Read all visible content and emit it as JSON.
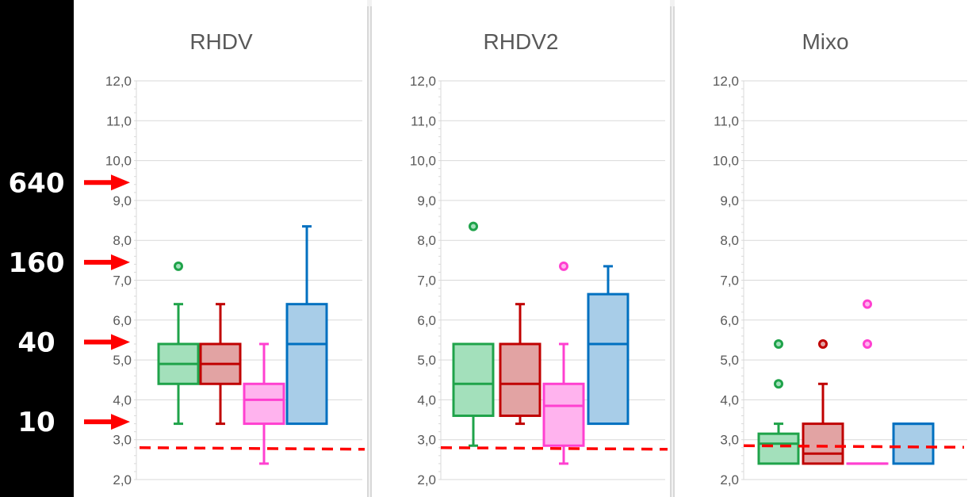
{
  "chart_data": [
    {
      "type": "box",
      "title": "RHDV",
      "ylim": [
        2,
        12
      ],
      "ytick_labels": [
        "2,0",
        "3,0",
        "4,0",
        "5,0",
        "6,0",
        "7,0",
        "8,0",
        "9,0",
        "10,0",
        "11,0",
        "12,0"
      ],
      "threshold_line": 2.8,
      "series": [
        {
          "color": "#1fa34a",
          "fill": "#a3e0bb",
          "q1": 4.4,
          "median": 4.9,
          "q3": 5.4,
          "whisker_low": 3.4,
          "whisker_high": 6.4,
          "outliers": [
            7.35
          ]
        },
        {
          "color": "#c00000",
          "fill": "#e2a3a3",
          "q1": 4.4,
          "median": 4.9,
          "q3": 5.4,
          "whisker_low": 3.4,
          "whisker_high": 6.4,
          "outliers": []
        },
        {
          "color": "#ff40d0",
          "fill": "#ffb3ee",
          "q1": 3.4,
          "median": 4.0,
          "q3": 4.4,
          "whisker_low": 2.4,
          "whisker_high": 5.4,
          "outliers": []
        },
        {
          "color": "#0070c0",
          "fill": "#a8cde8",
          "q1": 3.4,
          "median": 5.4,
          "q3": 6.4,
          "whisker_low": 3.4,
          "whisker_high": 8.35,
          "outliers": []
        }
      ]
    },
    {
      "type": "box",
      "title": "RHDV2",
      "ylim": [
        2,
        12
      ],
      "ytick_labels": [
        "2,0",
        "3,0",
        "4,0",
        "5,0",
        "6,0",
        "7,0",
        "8,0",
        "9,0",
        "10,0",
        "11,0",
        "12,0"
      ],
      "threshold_line": 2.8,
      "series": [
        {
          "color": "#1fa34a",
          "fill": "#a3e0bb",
          "q1": 3.6,
          "median": 4.4,
          "q3": 5.4,
          "whisker_low": 2.85,
          "whisker_high": 5.4,
          "outliers": [
            8.35
          ]
        },
        {
          "color": "#c00000",
          "fill": "#e2a3a3",
          "q1": 3.6,
          "median": 4.4,
          "q3": 5.4,
          "whisker_low": 3.4,
          "whisker_high": 6.4,
          "outliers": []
        },
        {
          "color": "#ff40d0",
          "fill": "#ffb3ee",
          "q1": 2.85,
          "median": 3.85,
          "q3": 4.4,
          "whisker_low": 2.4,
          "whisker_high": 5.4,
          "outliers": [
            7.35
          ]
        },
        {
          "color": "#0070c0",
          "fill": "#a8cde8",
          "q1": 3.4,
          "median": 5.4,
          "q3": 6.65,
          "whisker_low": 3.4,
          "whisker_high": 7.35,
          "outliers": []
        }
      ]
    },
    {
      "type": "box",
      "title": "Mixo",
      "ylim": [
        2,
        12
      ],
      "ytick_labels": [
        "2,0",
        "3,0",
        "4,0",
        "5,0",
        "6,0",
        "7,0",
        "8,0",
        "9,0",
        "10,0",
        "11,0",
        "12,0"
      ],
      "threshold_line": 2.85,
      "series": [
        {
          "color": "#1fa34a",
          "fill": "#a3e0bb",
          "q1": 2.4,
          "median": 2.9,
          "q3": 3.15,
          "whisker_low": 2.4,
          "whisker_high": 3.4,
          "outliers": [
            4.4,
            5.4
          ]
        },
        {
          "color": "#c00000",
          "fill": "#e2a3a3",
          "q1": 2.4,
          "median": 2.65,
          "q3": 3.4,
          "whisker_low": 2.4,
          "whisker_high": 4.4,
          "outliers": [
            5.4
          ]
        },
        {
          "color": "#ff40d0",
          "fill": "#ffb3ee",
          "q1": 2.4,
          "median": 2.4,
          "q3": 2.4,
          "whisker_low": 2.4,
          "whisker_high": 2.4,
          "outliers": [
            5.4,
            6.4
          ]
        },
        {
          "color": "#0070c0",
          "fill": "#a8cde8",
          "q1": 2.4,
          "median": 3.4,
          "q3": 3.4,
          "whisker_low": 2.4,
          "whisker_high": 3.4,
          "outliers": []
        }
      ]
    }
  ],
  "annotations": [
    {
      "label": "640",
      "value": 9.45,
      "arrow_color": "#ff0000"
    },
    {
      "label": "160",
      "value": 7.45,
      "arrow_color": "#ff0000"
    },
    {
      "label": "40",
      "value": 5.45,
      "arrow_color": "#ff0000"
    },
    {
      "label": "10",
      "value": 3.45,
      "arrow_color": "#ff0000"
    }
  ],
  "colors": {
    "threshold_line": "#ff0000",
    "gridline": "#d9d9d9",
    "axis_text": "#595959",
    "panel_background": "#ffffff",
    "separator": "#bfbfbf"
  }
}
